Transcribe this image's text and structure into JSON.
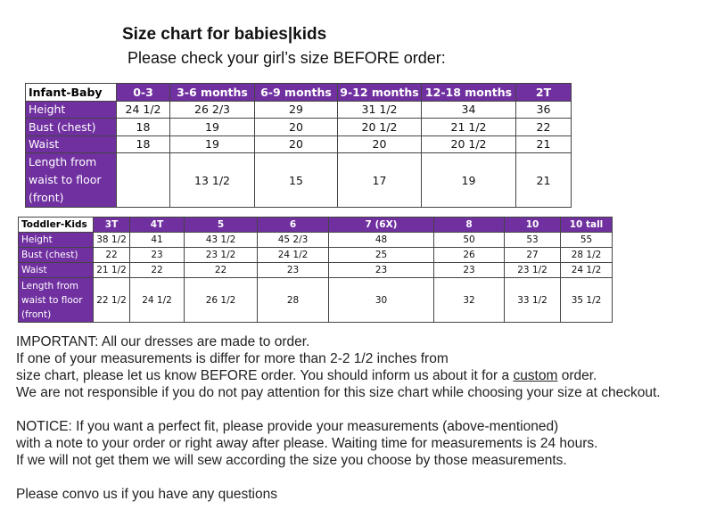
{
  "title": "Size chart for babies|kids",
  "subtitle": "Please check your girl’s size BEFORE order:",
  "colors": {
    "header_purple": "#7030a0",
    "border": "#444444"
  },
  "infant_table": {
    "corner": "Infant-Baby",
    "columns": [
      "0-3",
      "3-6 months",
      "6-9 months",
      "9-12 months",
      "12-18 months",
      "2T"
    ],
    "rows": [
      {
        "label": "Height",
        "values": [
          "24 1/2",
          "26 2/3",
          "29",
          "31 1/2",
          "34",
          "36"
        ]
      },
      {
        "label": "Bust (chest)",
        "values": [
          "18",
          "19",
          "20",
          "20 1/2",
          "21 1/2",
          "22"
        ]
      },
      {
        "label": "Waist",
        "values": [
          "18",
          "19",
          "20",
          "20",
          "20 1/2",
          "21"
        ]
      },
      {
        "label": "Length from waist to floor (front)",
        "values": [
          "",
          "13 1/2",
          "15",
          "17",
          "19",
          "21"
        ]
      }
    ]
  },
  "toddler_table": {
    "corner": "Toddler-Kids",
    "columns": [
      "3T",
      "4T",
      "5",
      "6",
      "7 (6X)",
      "8",
      "10",
      "10 tall"
    ],
    "rows": [
      {
        "label": "Height",
        "values": [
          "38 1/2",
          "41",
          "43 1/2",
          "45 2/3",
          "48",
          "50",
          "53",
          "55"
        ]
      },
      {
        "label": "Bust (chest)",
        "values": [
          "22",
          "23",
          "23 1/2",
          "24 1/2",
          "25",
          "26",
          "27",
          "28 1/2"
        ]
      },
      {
        "label": "Waist",
        "values": [
          "21 1/2",
          "22",
          "22",
          "23",
          "23",
          "23",
          "23 1/2",
          "24 1/2"
        ]
      },
      {
        "label": "Length from waist to floor (front)",
        "values": [
          "22 1/2",
          "24 1/2",
          "26 1/2",
          "28",
          "30",
          "32",
          "33 1/2",
          "35 1/2"
        ]
      }
    ]
  },
  "notes": {
    "important_1": "IMPORTANT: All our dresses are made to order.",
    "important_2": "If one of your measurements is differ for more than 2-2 1/2 inches from",
    "important_3a": "size chart, please let us know BEFORE order. You should inform us about it for a ",
    "important_3_link": "custom",
    "important_3b": " order.",
    "important_4": "We are not responsible if you do not pay attention for this size chart while choosing your size at checkout.",
    "notice_1": "NOTICE: If you want a perfect fit, please provide your measurements (above-mentioned)",
    "notice_2": "with a note to your order or right away after please. Waiting time for measurements is 24 hours.",
    "notice_3": "If we will not get them we will sew according the size you choose by those measurements.",
    "contact": "Please convo us if you have any questions"
  }
}
